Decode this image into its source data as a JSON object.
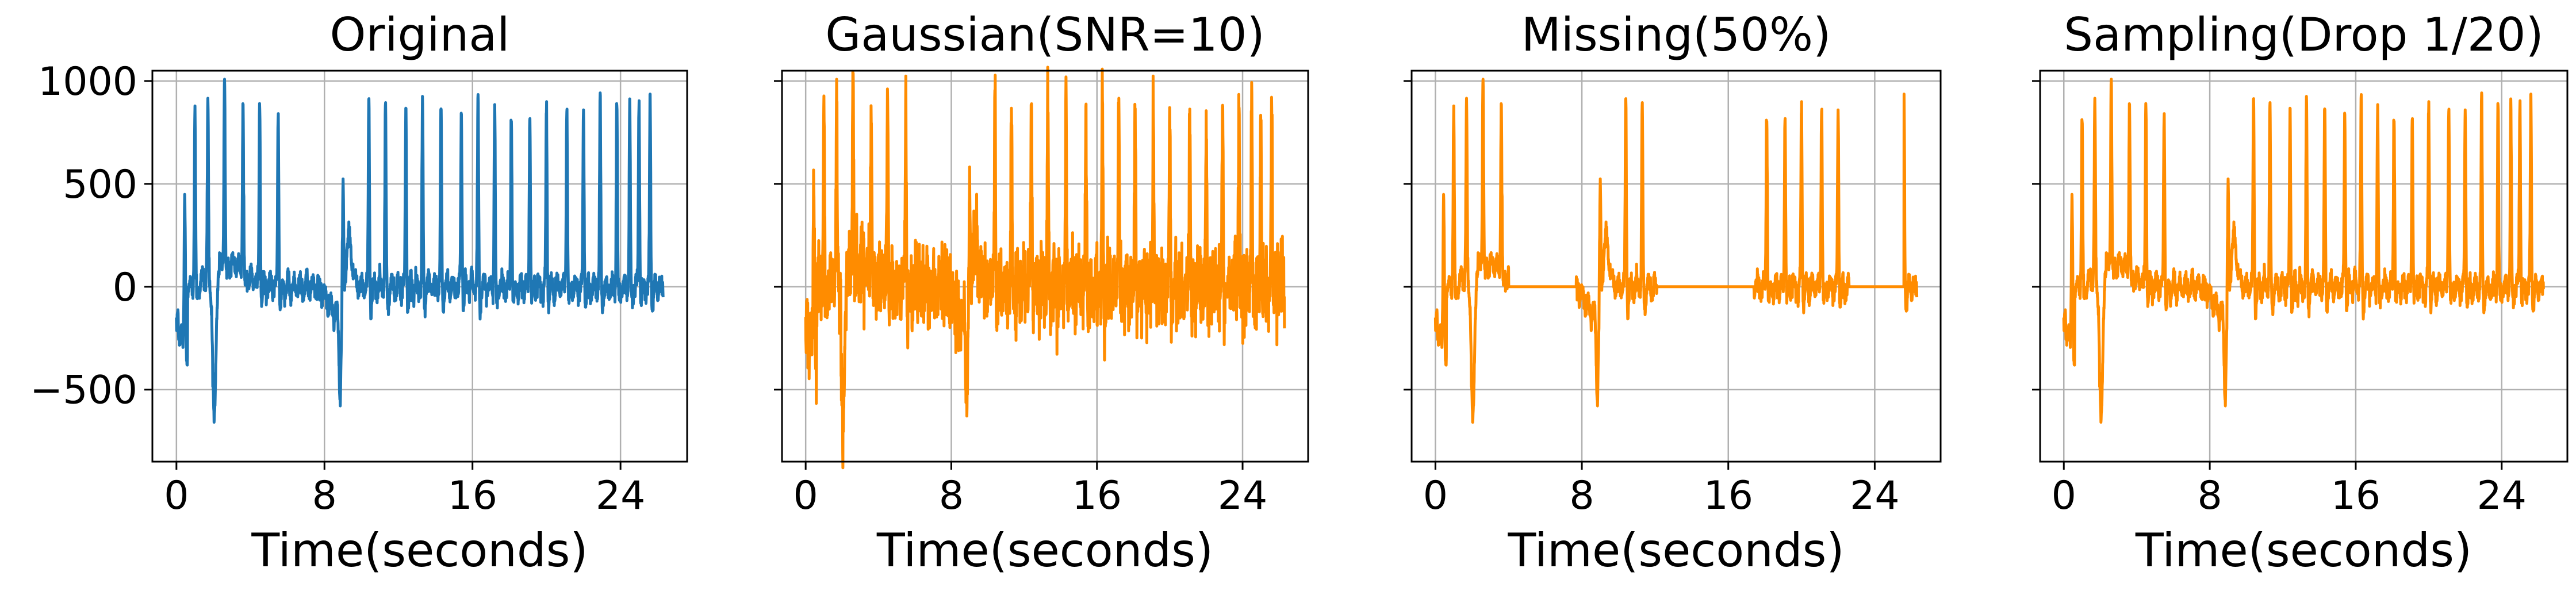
{
  "chart_data": [
    {
      "type": "line",
      "title": "Original",
      "xlabel": "Time(seconds)",
      "ylabel": "",
      "xlim": [
        -1.3,
        27.6
      ],
      "ylim": [
        -850,
        1050
      ],
      "xticks": [
        0,
        8,
        16,
        24
      ],
      "xtick_labels": [
        "0",
        "8",
        "16",
        "24"
      ],
      "yticks": [
        1000,
        500,
        0,
        -500
      ],
      "ytick_labels": [
        "1000",
        "500",
        "0",
        "−500"
      ],
      "grid": true,
      "series": [
        {
          "color": "#1f77b4",
          "variant": "original",
          "spike_peaks": [
            590,
            860,
            850,
            920,
            850,
            890,
            860,
            480,
            910,
            880,
            860,
            880,
            870,
            880,
            900,
            880,
            870,
            870,
            880,
            910,
            870,
            900,
            920,
            880,
            940,
            920
          ],
          "baseline_mean": 0,
          "dip_min": -750,
          "x_range": [
            0,
            26.3
          ]
        }
      ]
    },
    {
      "type": "line",
      "title": "Gaussian(SNR=10)",
      "xlabel": "Time(seconds)",
      "ylabel": "",
      "xlim": [
        -1.3,
        27.6
      ],
      "ylim": [
        -850,
        1050
      ],
      "xticks": [
        0,
        8,
        16,
        24
      ],
      "xtick_labels": [
        "0",
        "8",
        "16",
        "24"
      ],
      "yticks": [
        1000,
        500,
        0,
        -500
      ],
      "ytick_labels": [
        "",
        "",
        "",
        ""
      ],
      "grid": true,
      "series": [
        {
          "color": "#ff8c00",
          "variant": "gaussian",
          "noise_std": 85,
          "x_range": [
            0,
            26.3
          ]
        }
      ]
    },
    {
      "type": "line",
      "title": "Missing(50%)",
      "xlabel": "Time(seconds)",
      "ylabel": "",
      "xlim": [
        -1.3,
        27.6
      ],
      "ylim": [
        -850,
        1050
      ],
      "xticks": [
        0,
        8,
        16,
        24
      ],
      "xtick_labels": [
        "0",
        "8",
        "16",
        "24"
      ],
      "yticks": [
        1000,
        500,
        0,
        -500
      ],
      "ytick_labels": [
        "",
        "",
        "",
        ""
      ],
      "grid": true,
      "series": [
        {
          "color": "#ff8c00",
          "variant": "missing",
          "missing_intervals": [
            [
              4.0,
              7.7
            ],
            [
              12.1,
              17.4
            ],
            [
              22.6,
              25.6
            ]
          ],
          "x_range": [
            0,
            26.3
          ]
        }
      ]
    },
    {
      "type": "line",
      "title": "Sampling(Drop 1/20)",
      "xlabel": "Time(seconds)",
      "ylabel": "",
      "xlim": [
        -1.3,
        27.6
      ],
      "ylim": [
        -850,
        1050
      ],
      "xticks": [
        0,
        8,
        16,
        24
      ],
      "xtick_labels": [
        "0",
        "8",
        "16",
        "24"
      ],
      "yticks": [
        1000,
        500,
        0,
        -500
      ],
      "ytick_labels": [
        "",
        "",
        "",
        ""
      ],
      "grid": true,
      "series": [
        {
          "color": "#ff8c00",
          "variant": "sampling",
          "drop_every": 20,
          "x_range": [
            0,
            26.3
          ]
        }
      ]
    }
  ]
}
